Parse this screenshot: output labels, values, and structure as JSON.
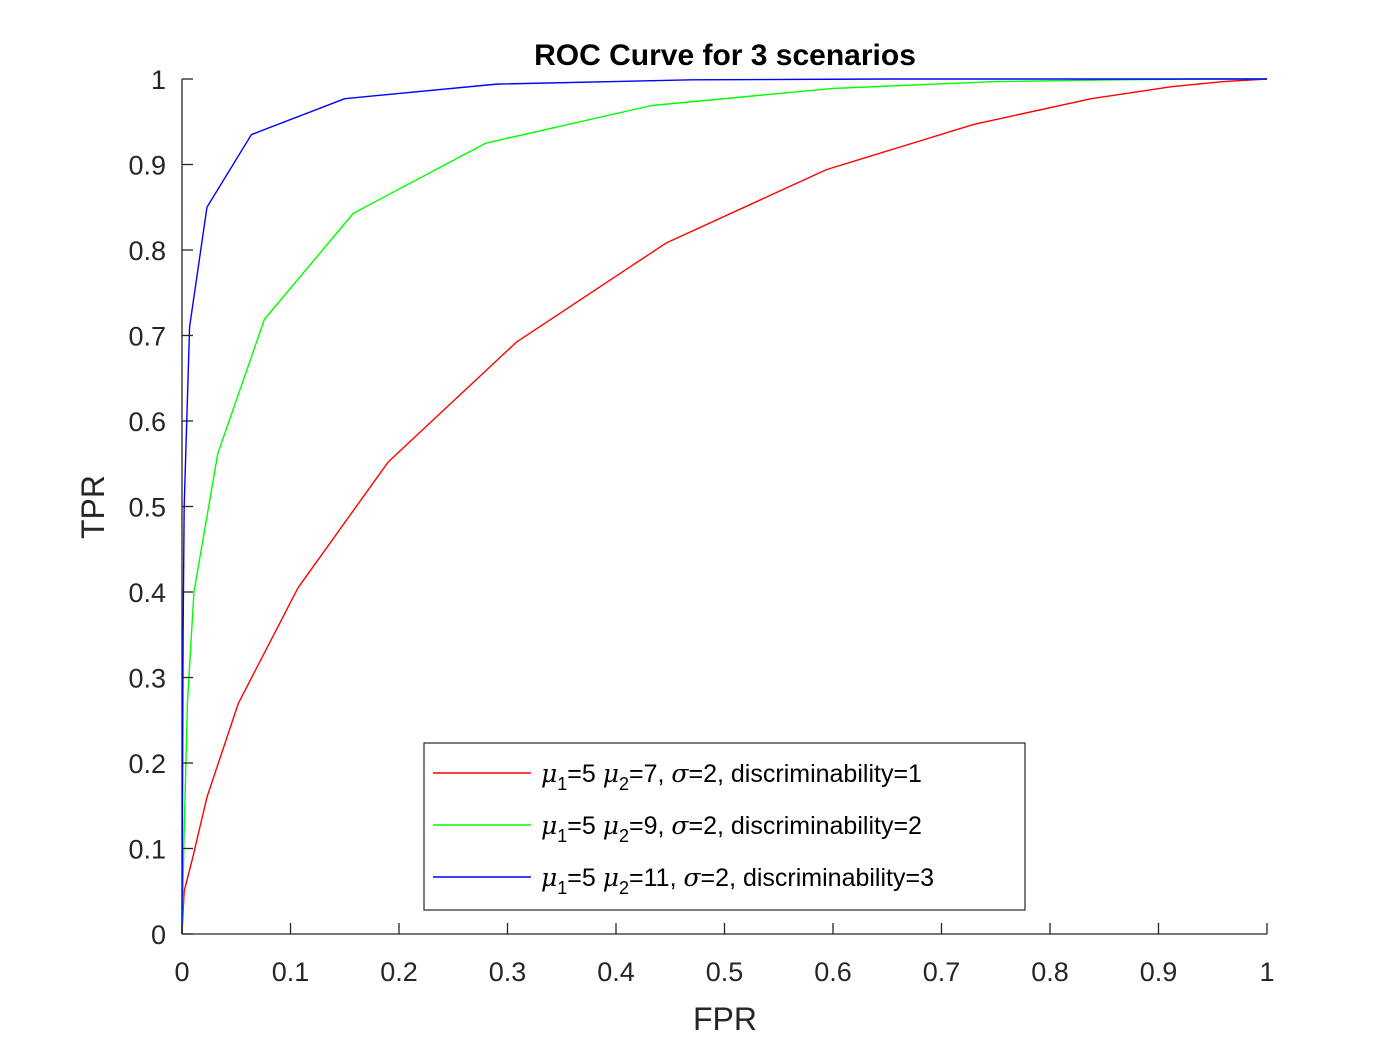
{
  "chart_data": {
    "type": "line",
    "title": "ROC Curve for 3 scenarios",
    "xlabel": "FPR",
    "ylabel": "TPR",
    "xlim": [
      0,
      1
    ],
    "ylim": [
      0,
      1
    ],
    "xticks": [
      "0",
      "0.1",
      "0.2",
      "0.3",
      "0.4",
      "0.5",
      "0.6",
      "0.7",
      "0.8",
      "0.9",
      "1"
    ],
    "yticks": [
      "0",
      "0.1",
      "0.2",
      "0.3",
      "0.4",
      "0.5",
      "0.6",
      "0.7",
      "0.8",
      "0.9",
      "1"
    ],
    "grid": false,
    "legend_position": "bottom-center",
    "series": [
      {
        "mu1": "5",
        "mu2": "7",
        "sigma": "2",
        "discriminability": "1",
        "color": "#ff0000",
        "x": [
          0,
          0.002,
          0.01,
          0.023,
          0.052,
          0.107,
          0.19,
          0.308,
          0.446,
          0.594,
          0.73,
          0.838,
          0.912,
          0.96,
          1
        ],
        "y": [
          0,
          0.05,
          0.09,
          0.16,
          0.27,
          0.405,
          0.552,
          0.692,
          0.808,
          0.894,
          0.947,
          0.977,
          0.991,
          0.997,
          1
        ]
      },
      {
        "mu1": "5",
        "mu2": "9",
        "sigma": "2",
        "discriminability": "2",
        "color": "#00ff00",
        "x": [
          0,
          0.002,
          0.005,
          0.011,
          0.033,
          0.076,
          0.158,
          0.28,
          0.433,
          0.6,
          0.75,
          0.86,
          0.935,
          1
        ],
        "y": [
          0,
          0.12,
          0.27,
          0.4,
          0.562,
          0.719,
          0.843,
          0.925,
          0.969,
          0.989,
          0.997,
          0.999,
          1,
          1
        ]
      },
      {
        "mu1": "5",
        "mu2": "11",
        "sigma": "2",
        "discriminability": "3",
        "color": "#0000ff",
        "x": [
          0,
          0.001,
          0.002,
          0.007,
          0.023,
          0.064,
          0.15,
          0.29,
          0.47,
          0.65,
          0.8,
          1
        ],
        "y": [
          0,
          0.35,
          0.5,
          0.71,
          0.85,
          0.935,
          0.977,
          0.994,
          0.999,
          1,
          1,
          1
        ]
      }
    ]
  }
}
